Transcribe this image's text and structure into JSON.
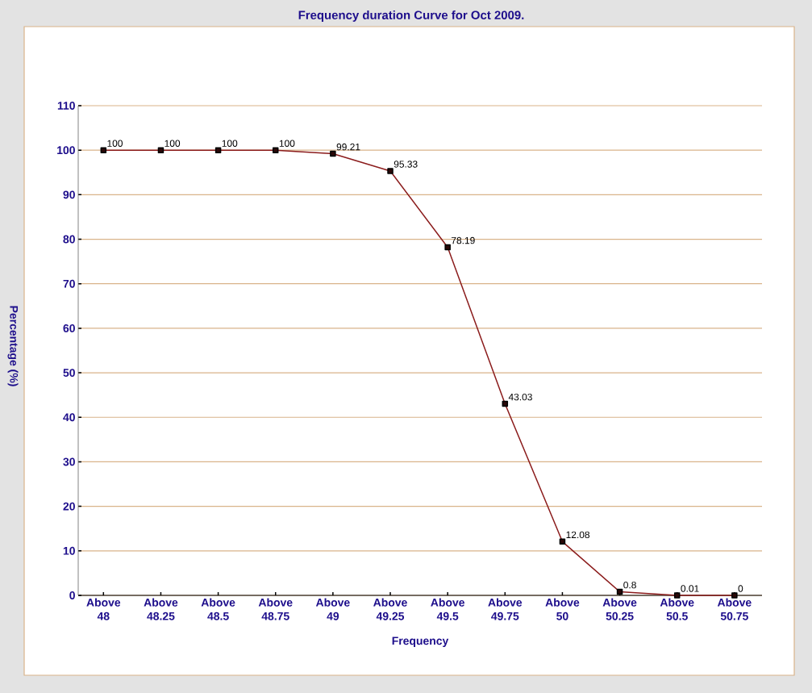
{
  "chart_data": {
    "type": "line",
    "title": "Frequency duration Curve for Oct 2009.",
    "xlabel": "Frequency",
    "ylabel": "Percentage (%)",
    "categories": [
      "Above 48",
      "Above 48.25",
      "Above 48.5",
      "Above 48.75",
      "Above 49",
      "Above 49.25",
      "Above 49.5",
      "Above 49.75",
      "Above 50",
      "Above 50.25",
      "Above 50.5",
      "Above 50.75"
    ],
    "values": [
      100,
      100,
      100,
      100,
      99.21,
      95.33,
      78.19,
      43.03,
      12.08,
      0.8,
      0.01,
      0
    ],
    "color": "#8b1c1c",
    "marker": "square",
    "data_labels": true,
    "grid": "y",
    "ylim": [
      0,
      110
    ],
    "yticks": [
      0,
      10,
      20,
      30,
      40,
      50,
      60,
      70,
      80,
      90,
      100,
      110
    ]
  }
}
